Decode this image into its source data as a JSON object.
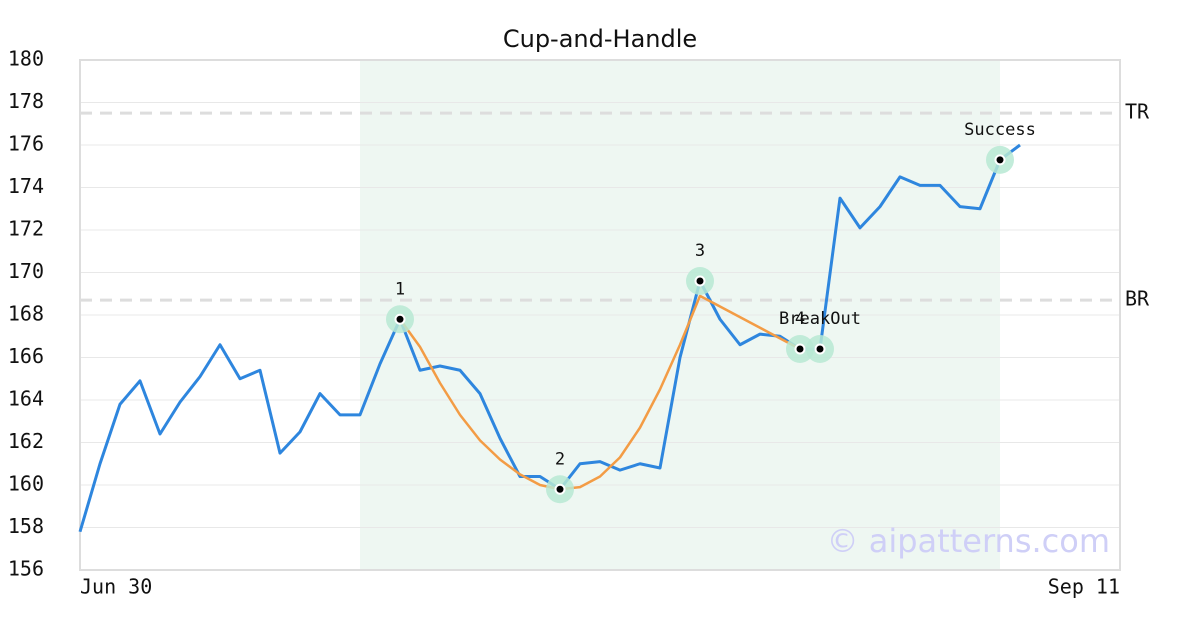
{
  "chart_data": {
    "type": "line",
    "title": "Cup-and-Handle",
    "x": [
      0,
      1,
      2,
      3,
      4,
      5,
      6,
      7,
      8,
      9,
      10,
      11,
      12,
      13,
      14,
      15,
      16,
      17,
      18,
      19,
      20,
      21,
      22,
      23,
      24,
      25,
      26,
      27,
      28,
      29,
      30,
      31,
      32,
      33,
      34,
      35,
      36,
      37,
      38,
      39,
      40,
      41,
      42,
      43,
      44,
      45,
      46,
      47
    ],
    "values": [
      157.8,
      161.0,
      163.8,
      164.9,
      162.4,
      163.9,
      165.1,
      166.6,
      165.0,
      165.4,
      161.5,
      162.5,
      164.3,
      163.3,
      163.3,
      165.7,
      167.8,
      165.4,
      165.6,
      165.4,
      164.3,
      162.2,
      160.4,
      160.4,
      159.8,
      161.0,
      161.1,
      160.7,
      161.0,
      160.8,
      166.0,
      169.6,
      167.8,
      166.6,
      167.1,
      167.0,
      166.4,
      166.4,
      173.5,
      172.1,
      173.1,
      174.5,
      174.1,
      174.1,
      173.1,
      173.0,
      175.3,
      176.0
    ],
    "color": "#2e86de",
    "fit_line": {
      "x": [
        16,
        17,
        18,
        19,
        20,
        21,
        22,
        23,
        24,
        25,
        26,
        27,
        28,
        29,
        30,
        31,
        32,
        33,
        34,
        35,
        36
      ],
      "values": [
        167.8,
        166.5,
        164.8,
        163.3,
        162.1,
        161.2,
        160.5,
        160.0,
        159.8,
        159.9,
        160.4,
        161.3,
        162.7,
        164.5,
        166.6,
        168.9,
        168.4,
        167.9,
        167.4,
        166.9,
        166.4
      ],
      "color": "#f39c45"
    },
    "highlight_x": [
      14,
      46
    ],
    "levels": [
      {
        "label": "TR",
        "value": 177.5
      },
      {
        "label": "BR",
        "value": 168.7
      }
    ],
    "points": [
      {
        "label": "1",
        "x": 16,
        "y": 167.8
      },
      {
        "label": "2",
        "x": 24,
        "y": 159.8
      },
      {
        "label": "3",
        "x": 31,
        "y": 169.6
      },
      {
        "label": "4",
        "x": 36,
        "y": 166.4
      },
      {
        "label": "BreakOut",
        "x": 37,
        "y": 166.4
      },
      {
        "label": "Success",
        "x": 46,
        "y": 175.3
      }
    ],
    "xlim": [
      0,
      52
    ],
    "xticks": [
      {
        "value": 0,
        "label": "Jun 30"
      },
      {
        "value": 52,
        "label": "Sep 11"
      }
    ],
    "ylim": [
      156,
      180
    ],
    "yticks": [
      156,
      158,
      160,
      162,
      164,
      166,
      168,
      170,
      172,
      174,
      176,
      178,
      180
    ],
    "grid": true,
    "watermark": "© aipatterns.com"
  }
}
